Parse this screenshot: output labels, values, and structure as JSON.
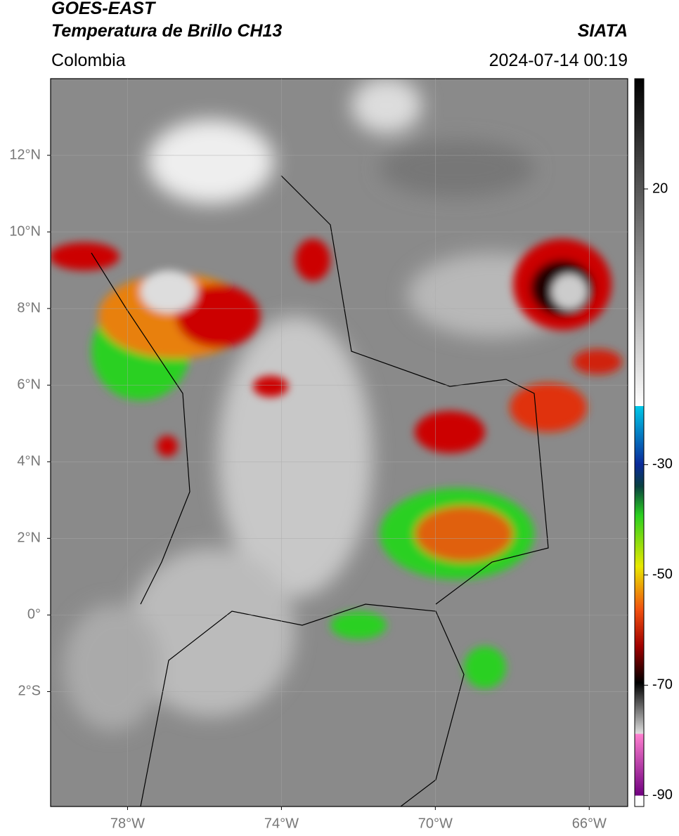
{
  "header": {
    "title": "GOES-EAST",
    "subtitle": "Temperatura de Brillo CH13",
    "region": "Colombia",
    "source": "SIATA",
    "timestamp": "2024-07-14 00:19"
  },
  "map": {
    "xlim": [
      -80,
      -65
    ],
    "ylim": [
      -5,
      14
    ],
    "xticks": [
      {
        "value": -78,
        "label": "78°W"
      },
      {
        "value": -74,
        "label": "74°W"
      },
      {
        "value": -70,
        "label": "70°W"
      },
      {
        "value": -66,
        "label": "66°W"
      }
    ],
    "yticks": [
      {
        "value": 12,
        "label": "12°N"
      },
      {
        "value": 10,
        "label": "10°N"
      },
      {
        "value": 8,
        "label": "8°N"
      },
      {
        "value": 6,
        "label": "6°N"
      },
      {
        "value": 4,
        "label": "4°N"
      },
      {
        "value": 2,
        "label": "2°N"
      },
      {
        "value": 0,
        "label": "0°"
      },
      {
        "value": -2,
        "label": "2°S"
      }
    ],
    "grid": true
  },
  "colorbar": {
    "lim": [
      40,
      -92
    ],
    "ticks": [
      20,
      -30,
      -50,
      -70,
      -90
    ]
  }
}
